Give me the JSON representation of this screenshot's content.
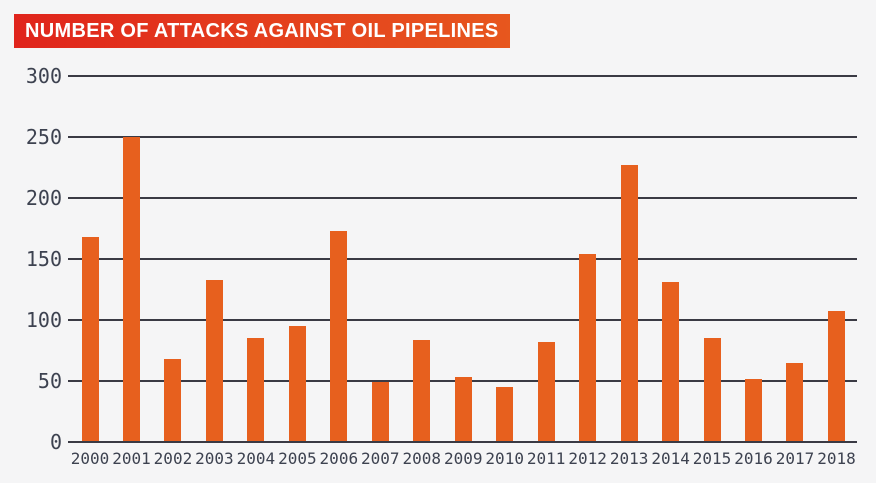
{
  "chart_data": {
    "type": "bar",
    "title": "NUMBER OF ATTACKS AGAINST OIL PIPELINES",
    "categories": [
      "2000",
      "2001",
      "2002",
      "2003",
      "2004",
      "2005",
      "2006",
      "2007",
      "2008",
      "2009",
      "2010",
      "2011",
      "2012",
      "2013",
      "2014",
      "2015",
      "2016",
      "2017",
      "2018"
    ],
    "values": [
      168,
      250,
      68,
      133,
      85,
      95,
      173,
      49,
      84,
      53,
      45,
      82,
      154,
      227,
      131,
      85,
      52,
      65,
      107
    ],
    "xlabel": "",
    "ylabel": "",
    "ylim": [
      0,
      300
    ],
    "ytick_step": 50,
    "ytick_labels": [
      "0",
      "50",
      "100",
      "150",
      "200",
      "250",
      "300"
    ],
    "grid": true,
    "legend": false
  },
  "colors": {
    "background": "#f5f5f6",
    "bar": "#e7601e",
    "gridline": "#3a3a44",
    "axis_text": "#3d4250",
    "title_background_left": "#e0241c",
    "title_background_right": "#e7571e",
    "title_text": "#ffffff"
  }
}
